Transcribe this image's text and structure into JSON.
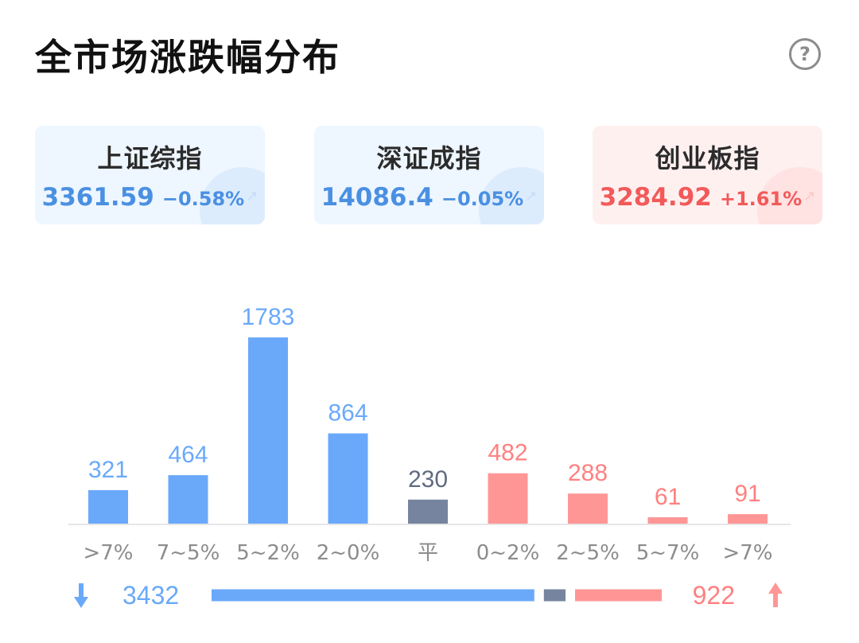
{
  "header": {
    "title": "全市场涨跌幅分布",
    "help_label": "?"
  },
  "indices": [
    {
      "name": "上证综指",
      "value": "3361.59",
      "change": "−0.58%",
      "trend": "down"
    },
    {
      "name": "深证成指",
      "value": "14086.4",
      "change": "−0.05%",
      "trend": "down"
    },
    {
      "name": "创业板指",
      "value": "3284.92",
      "change": "+1.61%",
      "trend": "up"
    }
  ],
  "colors": {
    "down": "#6aa9fa",
    "flat": "#76849f",
    "up": "#ff9696",
    "down_text": "#6aa9fa",
    "flat_text": "#5f6b80",
    "up_text": "#ff8080",
    "axis_label": "#8c8c8c"
  },
  "chart_data": {
    "type": "bar",
    "categories": [
      ">7%",
      "7~5%",
      "5~2%",
      "2~0%",
      "平",
      "0~2%",
      "2~5%",
      "5~7%",
      ">7%"
    ],
    "values": [
      321,
      464,
      1783,
      864,
      230,
      482,
      288,
      61,
      91
    ],
    "groups": [
      "down",
      "down",
      "down",
      "down",
      "flat",
      "up",
      "up",
      "up",
      "up"
    ],
    "ylim": [
      0,
      1783
    ],
    "summary": {
      "down_total": "3432",
      "flat_total": 230,
      "up_total": "922"
    }
  }
}
